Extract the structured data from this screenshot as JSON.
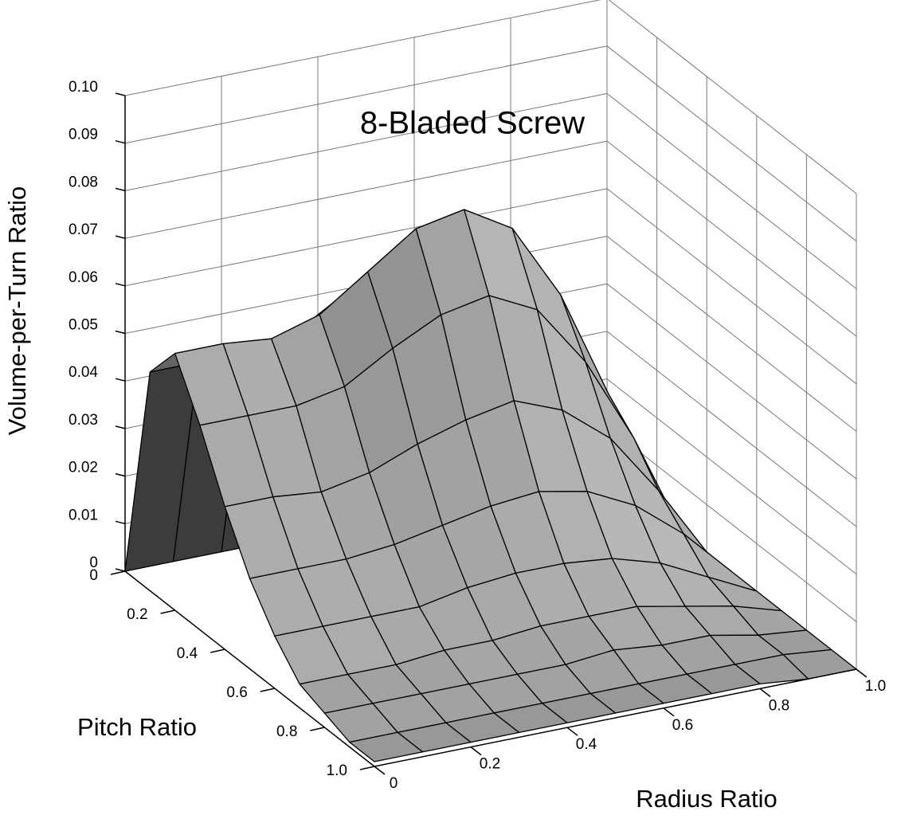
{
  "chart_data": {
    "type": "surface",
    "title": "8-Bladed Screw",
    "xlabel": "Radius Ratio",
    "ylabel": "Pitch Ratio",
    "zlabel": "Volume-per-Turn Ratio",
    "x": [
      0,
      0.1,
      0.2,
      0.3,
      0.4,
      0.5,
      0.6,
      0.7,
      0.8,
      0.9,
      1
    ],
    "y": [
      0,
      0.1,
      0.2,
      0.3,
      0.4,
      0.5,
      0.6,
      0.7,
      0.8,
      0.9,
      1
    ],
    "z": [
      [
        0,
        0,
        0,
        0,
        0,
        0,
        0,
        0,
        0,
        0,
        0
      ],
      [
        0.046,
        0.046,
        0.045,
        0.048,
        0.054,
        0.059,
        0.061,
        0.056,
        0.043,
        0.023,
        0
      ],
      [
        0.054,
        0.054,
        0.053,
        0.056,
        0.063,
        0.07,
        0.072,
        0.066,
        0.05,
        0.027,
        0
      ],
      [
        0.043,
        0.043,
        0.043,
        0.045,
        0.051,
        0.056,
        0.058,
        0.053,
        0.04,
        0.022,
        0
      ],
      [
        0.03,
        0.03,
        0.029,
        0.031,
        0.035,
        0.038,
        0.04,
        0.036,
        0.028,
        0.015,
        0
      ],
      [
        0.019,
        0.019,
        0.019,
        0.02,
        0.022,
        0.024,
        0.025,
        0.023,
        0.018,
        0.01,
        0
      ],
      [
        0.011,
        0.011,
        0.011,
        0.011,
        0.013,
        0.014,
        0.014,
        0.013,
        0.01,
        0.005,
        0
      ],
      [
        0.005,
        0.005,
        0.005,
        0.006,
        0.006,
        0.007,
        0.007,
        0.007,
        0.005,
        0.003,
        0
      ],
      [
        0.003,
        0.003,
        0.003,
        0.003,
        0.003,
        0.003,
        0.004,
        0.003,
        0.003,
        0.001,
        0
      ],
      [
        0.001,
        0.001,
        0.001,
        0.001,
        0.001,
        0.001,
        0.001,
        0.001,
        0.001,
        0.001,
        0
      ],
      [
        0.001,
        0.001,
        0.001,
        0.001,
        0.001,
        0.001,
        0.001,
        0.001,
        0.001,
        0,
        0
      ]
    ],
    "color": "#a8a8a8",
    "xlim": [
      0,
      1
    ],
    "ylim": [
      0,
      1
    ],
    "zlim": [
      0,
      0.1
    ],
    "xticks": [
      0,
      0.2,
      0.4,
      0.6,
      0.8,
      {
        "value": 1,
        "label": "1.0"
      }
    ],
    "yticks": [
      0,
      0.2,
      0.4,
      0.6,
      0.8,
      {
        "value": 1,
        "label": "1.0"
      }
    ],
    "zticks": [
      0,
      0.01,
      0.02,
      0.03,
      0.04,
      0.05,
      0.06,
      0.07,
      0.08,
      0.09,
      {
        "value": 0.1,
        "label": "0.10"
      }
    ],
    "grid": true
  }
}
